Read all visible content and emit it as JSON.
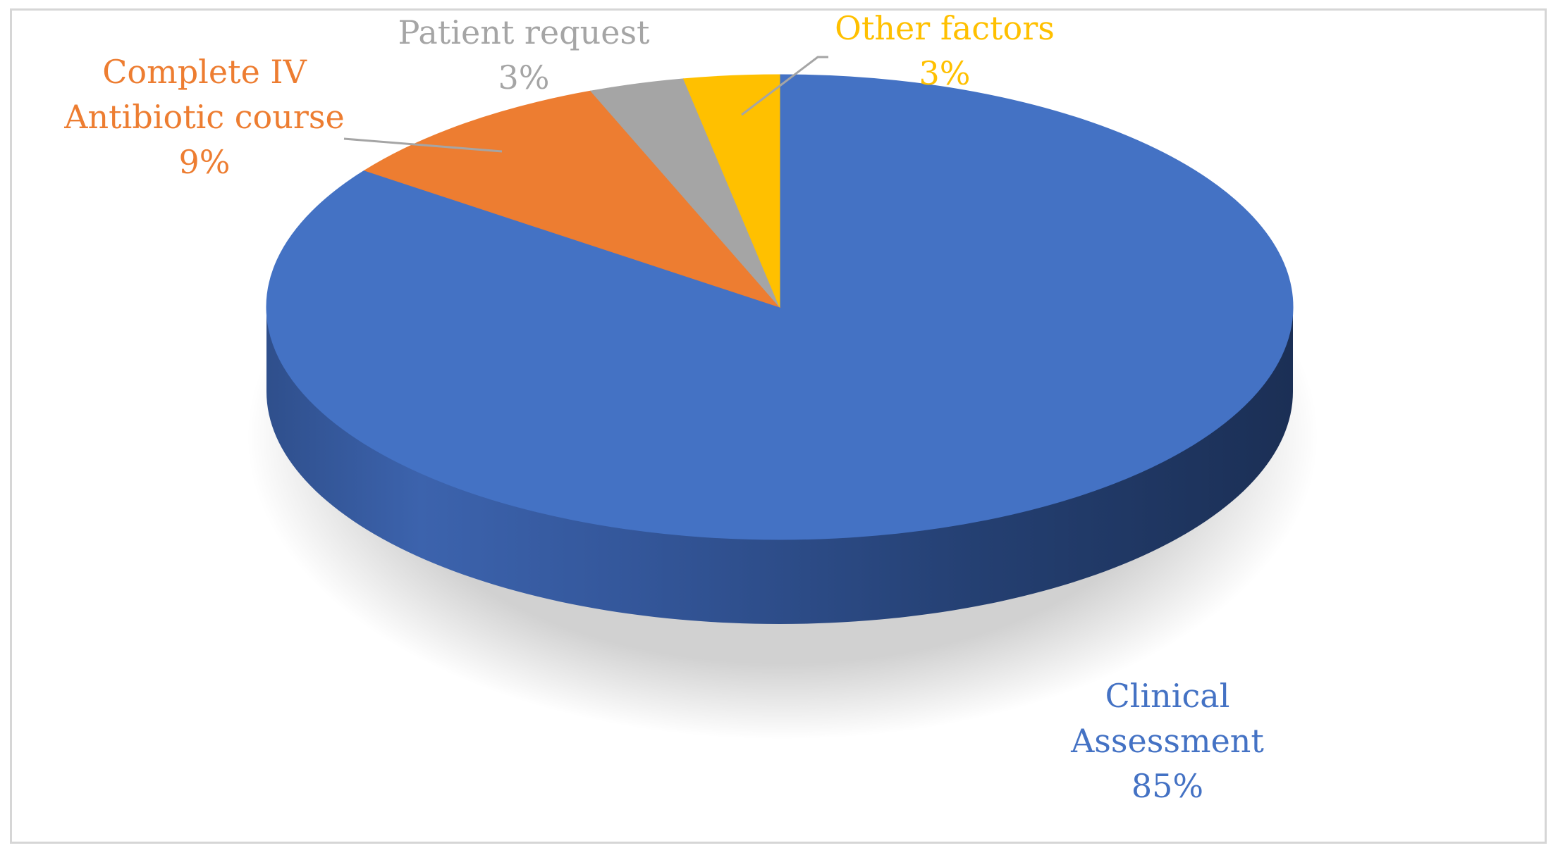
{
  "chart_data": {
    "type": "pie",
    "style": "3d",
    "start_angle_deg": 0,
    "direction": "clockwise",
    "slices": [
      {
        "name": "Clinical Assessment",
        "label_lines": [
          "Clinical",
          "Assessment"
        ],
        "value": 85,
        "value_label": "85%",
        "color": "#4472C4",
        "label_color": "#4472C4"
      },
      {
        "name": "Complete IV Antibiotic course",
        "label_lines": [
          "Complete IV",
          "Antibiotic course"
        ],
        "value": 9,
        "value_label": "9%",
        "color": "#ED7D31",
        "label_color": "#ED7D31"
      },
      {
        "name": "Patient request",
        "label_lines": [
          "Patient request"
        ],
        "value": 3,
        "value_label": "3%",
        "color": "#A5A5A5",
        "label_color": "#A5A5A5"
      },
      {
        "name": "Other factors",
        "label_lines": [
          "Other factors"
        ],
        "value": 3,
        "value_label": "3%",
        "color": "#FFC000",
        "label_color": "#FFC000"
      }
    ]
  }
}
